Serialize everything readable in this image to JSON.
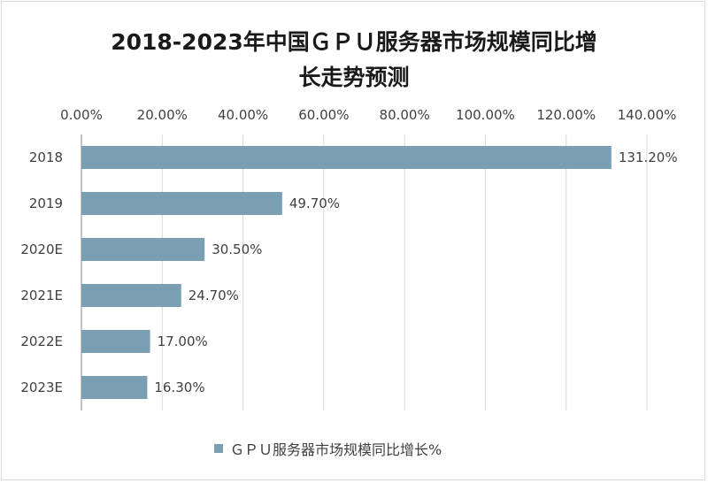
{
  "title_line1": "2018-2023年中国ＧＰＵ服务器市场规模同比增",
  "title_line2": "长走势预测",
  "legend_label": "ＧＰＵ服务器市场规模同比增长%",
  "colors": {
    "bar": "#7a9eb2",
    "grid": "#d9d9d9",
    "axis": "#808080"
  },
  "chart_data": {
    "type": "bar",
    "orientation": "horizontal",
    "categories": [
      "2018",
      "2019",
      "2020E",
      "2021E",
      "2022E",
      "2023E"
    ],
    "values": [
      131.2,
      49.7,
      30.5,
      24.7,
      17.0,
      16.3
    ],
    "value_labels": [
      "131.20%",
      "49.70%",
      "30.50%",
      "24.70%",
      "17.00%",
      "16.30%"
    ],
    "xlim": [
      0,
      140
    ],
    "xticks": [
      0,
      20,
      40,
      60,
      80,
      100,
      120,
      140
    ],
    "xtick_labels": [
      "0.00%",
      "20.00%",
      "40.00%",
      "60.00%",
      "80.00%",
      "100.00%",
      "120.00%",
      "140.00%"
    ],
    "xaxis_position": "top",
    "series": [
      {
        "name": "ＧＰＵ服务器市场规模同比增长%",
        "values": [
          131.2,
          49.7,
          30.5,
          24.7,
          17.0,
          16.3
        ]
      }
    ],
    "grid": true,
    "legend": "bottom"
  }
}
